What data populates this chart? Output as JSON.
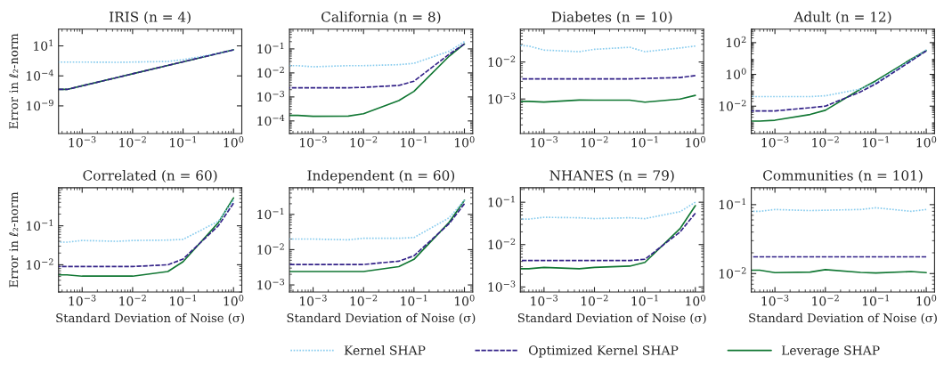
{
  "chart_data": [
    {
      "type": "line",
      "title": "IRIS (n = 4)",
      "ylabel": "Error in ℓ₂-norm",
      "log": "xy",
      "legend": "bottom",
      "x": [
        0.00034,
        0.0005,
        0.001,
        0.005,
        0.01,
        0.05,
        0.1,
        0.5,
        1
      ],
      "xlim": [
        0.00034,
        1.46
      ],
      "xticks": [
        {
          "value": 0.001,
          "label": "10$^{−3}$"
        },
        {
          "value": 0.01,
          "label": "10$^{−2}$"
        },
        {
          "value": 0.1,
          "label": "10$^{−1}$"
        },
        {
          "value": 1,
          "label": "10$^{0}$"
        }
      ],
      "ylim": [
        2.5e-14,
        6000
      ],
      "yticks": [
        {
          "value": 10,
          "label": "10$^{1}$"
        },
        {
          "value": 0.0001,
          "label": "10$^{−4}$"
        },
        {
          "value": 1e-09,
          "label": "10$^{−9}$"
        }
      ],
      "series": [
        {
          "name": "Kernel SHAP",
          "color": "#88ccee",
          "line_style": "dotted",
          "values": [
            0.02,
            0.02,
            0.02,
            0.018,
            0.02,
            0.025,
            0.05,
            0.55,
            2.0
          ]
        },
        {
          "name": "Optimized Kernel SHAP",
          "color": "#332288",
          "line_style": "dashed",
          "values": [
            5.5e-07,
            5.5e-07,
            2.2e-06,
            5.5e-05,
            0.00022,
            0.0055,
            0.022,
            0.55,
            2.2
          ]
        },
        {
          "name": "Leverage SHAP",
          "color": "#117733",
          "line_style": "solid",
          "values": [
            5.5e-07,
            5.5e-07,
            2.2e-06,
            5.5e-05,
            0.00022,
            0.0055,
            0.022,
            0.55,
            2.2
          ]
        }
      ]
    },
    {
      "type": "line",
      "title": "California (n = 8)",
      "log": "xy",
      "x": [
        0.00034,
        0.0005,
        0.001,
        0.005,
        0.01,
        0.05,
        0.1,
        0.5,
        1
      ],
      "xlim": [
        0.00034,
        1.46
      ],
      "xticks": [
        {
          "value": 0.001,
          "label": "10$^{−3}$"
        },
        {
          "value": 0.01,
          "label": "10$^{−2}$"
        },
        {
          "value": 0.1,
          "label": "10$^{−1}$"
        },
        {
          "value": 1,
          "label": "10$^{0}$"
        }
      ],
      "ylim": [
        3e-05,
        0.66
      ],
      "yticks": [
        {
          "value": 0.1,
          "label": "10$^{−1}$"
        },
        {
          "value": 0.01,
          "label": "10$^{−2}$"
        },
        {
          "value": 0.001,
          "label": "10$^{−3}$"
        },
        {
          "value": 0.0001,
          "label": "10$^{−4}$"
        }
      ],
      "series": [
        {
          "color": "#88ccee",
          "line_style": "dotted",
          "values": [
            0.02,
            0.02,
            0.018,
            0.02,
            0.02,
            0.022,
            0.025,
            0.08,
            0.2
          ]
        },
        {
          "color": "#332288",
          "line_style": "dashed",
          "values": [
            0.0024,
            0.0024,
            0.0024,
            0.0024,
            0.0025,
            0.003,
            0.0045,
            0.06,
            0.16
          ]
        },
        {
          "color": "#117733",
          "line_style": "solid",
          "values": [
            0.00017,
            0.00017,
            0.000155,
            0.00016,
            0.0002,
            0.0007,
            0.0017,
            0.05,
            0.16
          ]
        }
      ]
    },
    {
      "type": "line",
      "title": "Diabetes (n = 10)",
      "log": "xy",
      "x": [
        0.00034,
        0.0005,
        0.001,
        0.005,
        0.01,
        0.05,
        0.1,
        0.5,
        1
      ],
      "xlim": [
        0.00034,
        1.46
      ],
      "xticks": [
        {
          "value": 0.001,
          "label": "10$^{−3}$"
        },
        {
          "value": 0.01,
          "label": "10$^{−2}$"
        },
        {
          "value": 0.1,
          "label": "10$^{−1}$"
        },
        {
          "value": 1,
          "label": "10$^{0}$"
        }
      ],
      "ylim": [
        0.000117,
        0.077
      ],
      "yticks": [
        {
          "value": 0.01,
          "label": "10$^{−2}$"
        },
        {
          "value": 0.001,
          "label": "10$^{−3}$"
        }
      ],
      "series": [
        {
          "color": "#88ccee",
          "line_style": "dotted",
          "values": [
            0.028,
            0.027,
            0.021,
            0.019,
            0.022,
            0.025,
            0.019,
            0.024,
            0.027
          ]
        },
        {
          "color": "#332288",
          "line_style": "dashed",
          "values": [
            0.0035,
            0.0035,
            0.0035,
            0.0035,
            0.0035,
            0.0035,
            0.0036,
            0.0038,
            0.0043
          ]
        },
        {
          "color": "#117733",
          "line_style": "solid",
          "values": [
            0.00086,
            0.00086,
            0.00083,
            0.00094,
            0.00093,
            0.00093,
            0.00082,
            0.001,
            0.00125
          ]
        }
      ]
    },
    {
      "type": "line",
      "title": "Adult (n = 12)",
      "log": "xy",
      "x": [
        0.00034,
        0.0005,
        0.001,
        0.005,
        0.01,
        0.05,
        0.1,
        0.5,
        1
      ],
      "xlim": [
        0.00034,
        1.46
      ],
      "xticks": [
        {
          "value": 0.001,
          "label": "10$^{−3}$"
        },
        {
          "value": 0.01,
          "label": "10$^{−2}$"
        },
        {
          "value": 0.1,
          "label": "10$^{−1}$"
        },
        {
          "value": 1,
          "label": "10$^{0}$"
        }
      ],
      "ylim": [
        0.00019,
        700
      ],
      "yticks": [
        {
          "value": 100,
          "label": "10$^{2}$"
        },
        {
          "value": 1,
          "label": "10$^{0}$"
        },
        {
          "value": 0.01,
          "label": "10$^{−2}$"
        }
      ],
      "series": [
        {
          "color": "#88ccee",
          "line_style": "dotted",
          "values": [
            0.04,
            0.04,
            0.04,
            0.04,
            0.045,
            0.12,
            0.3,
            8,
            35
          ]
        },
        {
          "color": "#332288",
          "line_style": "dashed",
          "values": [
            0.005,
            0.005,
            0.005,
            0.008,
            0.01,
            0.08,
            0.25,
            7,
            30
          ]
        },
        {
          "color": "#117733",
          "line_style": "solid",
          "values": [
            0.00115,
            0.00115,
            0.0013,
            0.003,
            0.0055,
            0.12,
            0.4,
            9,
            32
          ]
        }
      ]
    },
    {
      "type": "line",
      "title": "Correlated (n = 60)",
      "ylabel": "Error in ℓ₂-norm",
      "xlabel": "Standard Deviation of Noise (σ)",
      "log": "xy",
      "x": [
        0.00034,
        0.0005,
        0.001,
        0.005,
        0.01,
        0.05,
        0.1,
        0.5,
        1
      ],
      "xlim": [
        0.00034,
        1.46
      ],
      "xticks": [
        {
          "value": 0.001,
          "label": "10$^{−3}$"
        },
        {
          "value": 0.01,
          "label": "10$^{−2}$"
        },
        {
          "value": 0.1,
          "label": "10$^{−1}$"
        },
        {
          "value": 1,
          "label": "10$^{0}$"
        }
      ],
      "ylim": [
        0.002,
        0.95
      ],
      "yticks": [
        {
          "value": 0.1,
          "label": "10$^{−1}$"
        },
        {
          "value": 0.01,
          "label": "10$^{−2}$"
        }
      ],
      "series": [
        {
          "color": "#88ccee",
          "line_style": "dotted",
          "values": [
            0.038,
            0.038,
            0.042,
            0.04,
            0.042,
            0.043,
            0.045,
            0.13,
            0.45
          ]
        },
        {
          "color": "#332288",
          "line_style": "dashed",
          "values": [
            0.009,
            0.009,
            0.009,
            0.009,
            0.009,
            0.01,
            0.014,
            0.1,
            0.38
          ]
        },
        {
          "color": "#117733",
          "line_style": "solid",
          "values": [
            0.0055,
            0.0055,
            0.0051,
            0.0051,
            0.0051,
            0.0067,
            0.012,
            0.12,
            0.52
          ]
        }
      ]
    },
    {
      "type": "line",
      "title": "Independent (n = 60)",
      "xlabel": "Standard Deviation of Noise (σ)",
      "log": "xy",
      "x": [
        0.00034,
        0.0005,
        0.001,
        0.005,
        0.01,
        0.05,
        0.1,
        0.5,
        1
      ],
      "xlim": [
        0.00034,
        1.46
      ],
      "xticks": [
        {
          "value": 0.001,
          "label": "10$^{−3}$"
        },
        {
          "value": 0.01,
          "label": "10$^{−2}$"
        },
        {
          "value": 0.1,
          "label": "10$^{−1}$"
        },
        {
          "value": 1,
          "label": "10$^{0}$"
        }
      ],
      "ylim": [
        0.00063,
        0.57
      ],
      "yticks": [
        {
          "value": 0.1,
          "label": "10$^{−1}$"
        },
        {
          "value": 0.01,
          "label": "10$^{−2}$"
        },
        {
          "value": 0.001,
          "label": "10$^{−3}$"
        }
      ],
      "series": [
        {
          "color": "#88ccee",
          "line_style": "dotted",
          "values": [
            0.02,
            0.02,
            0.02,
            0.019,
            0.021,
            0.021,
            0.022,
            0.08,
            0.25
          ]
        },
        {
          "color": "#332288",
          "line_style": "dashed",
          "values": [
            0.0038,
            0.0038,
            0.0038,
            0.0038,
            0.0038,
            0.0047,
            0.0067,
            0.055,
            0.2
          ]
        },
        {
          "color": "#117733",
          "line_style": "solid",
          "values": [
            0.0024,
            0.0024,
            0.0024,
            0.0024,
            0.0024,
            0.0033,
            0.0053,
            0.06,
            0.25
          ]
        }
      ]
    },
    {
      "type": "line",
      "title": "NHANES (n = 79)",
      "xlabel": "Standard Deviation of Noise (σ)",
      "log": "xy",
      "x": [
        0.00034,
        0.0005,
        0.001,
        0.005,
        0.01,
        0.05,
        0.1,
        0.5,
        1
      ],
      "xlim": [
        0.00034,
        1.46
      ],
      "xticks": [
        {
          "value": 0.001,
          "label": "10$^{−3}$"
        },
        {
          "value": 0.01,
          "label": "10$^{−2}$"
        },
        {
          "value": 0.1,
          "label": "10$^{−1}$"
        },
        {
          "value": 1,
          "label": "10$^{0}$"
        }
      ],
      "ylim": [
        0.00076,
        0.22
      ],
      "yticks": [
        {
          "value": 0.1,
          "label": "10$^{−1}$"
        },
        {
          "value": 0.01,
          "label": "10$^{−2}$"
        },
        {
          "value": 0.001,
          "label": "10$^{−3}$"
        }
      ],
      "series": [
        {
          "color": "#88ccee",
          "line_style": "dotted",
          "values": [
            0.04,
            0.04,
            0.044,
            0.043,
            0.041,
            0.043,
            0.041,
            0.06,
            0.1
          ]
        },
        {
          "color": "#332288",
          "line_style": "dashed",
          "values": [
            0.0042,
            0.0042,
            0.0042,
            0.0042,
            0.0042,
            0.0042,
            0.0045,
            0.02,
            0.055
          ]
        },
        {
          "color": "#117733",
          "line_style": "solid",
          "values": [
            0.0027,
            0.0027,
            0.0029,
            0.0027,
            0.0029,
            0.0031,
            0.0038,
            0.024,
            0.083
          ]
        }
      ]
    },
    {
      "type": "line",
      "title": "Communities (n = 101)",
      "xlabel": "Standard Deviation of Noise (σ)",
      "log": "xy",
      "x": [
        0.00034,
        0.0005,
        0.001,
        0.005,
        0.01,
        0.05,
        0.1,
        0.5,
        1
      ],
      "xlim": [
        0.00034,
        1.46
      ],
      "xticks": [
        {
          "value": 0.001,
          "label": "10$^{−3}$"
        },
        {
          "value": 0.01,
          "label": "10$^{−2}$"
        },
        {
          "value": 0.1,
          "label": "10$^{−1}$"
        },
        {
          "value": 1,
          "label": "10$^{0}$"
        }
      ],
      "ylim": [
        0.0054,
        0.176
      ],
      "yticks": [
        {
          "value": 0.1,
          "label": "10$^{−1}$"
        },
        {
          "value": 0.01,
          "label": "10$^{−2}$"
        }
      ],
      "series": [
        {
          "color": "#88ccee",
          "line_style": "dotted",
          "values": [
            0.08,
            0.08,
            0.085,
            0.082,
            0.083,
            0.085,
            0.09,
            0.08,
            0.085
          ]
        },
        {
          "color": "#332288",
          "line_style": "dashed",
          "values": [
            0.0175,
            0.0175,
            0.0175,
            0.0175,
            0.0175,
            0.0175,
            0.0175,
            0.0175,
            0.0175
          ]
        },
        {
          "color": "#117733",
          "line_style": "solid",
          "values": [
            0.0112,
            0.0112,
            0.0103,
            0.0105,
            0.0114,
            0.0104,
            0.0102,
            0.0107,
            0.0103
          ]
        }
      ]
    }
  ]
}
